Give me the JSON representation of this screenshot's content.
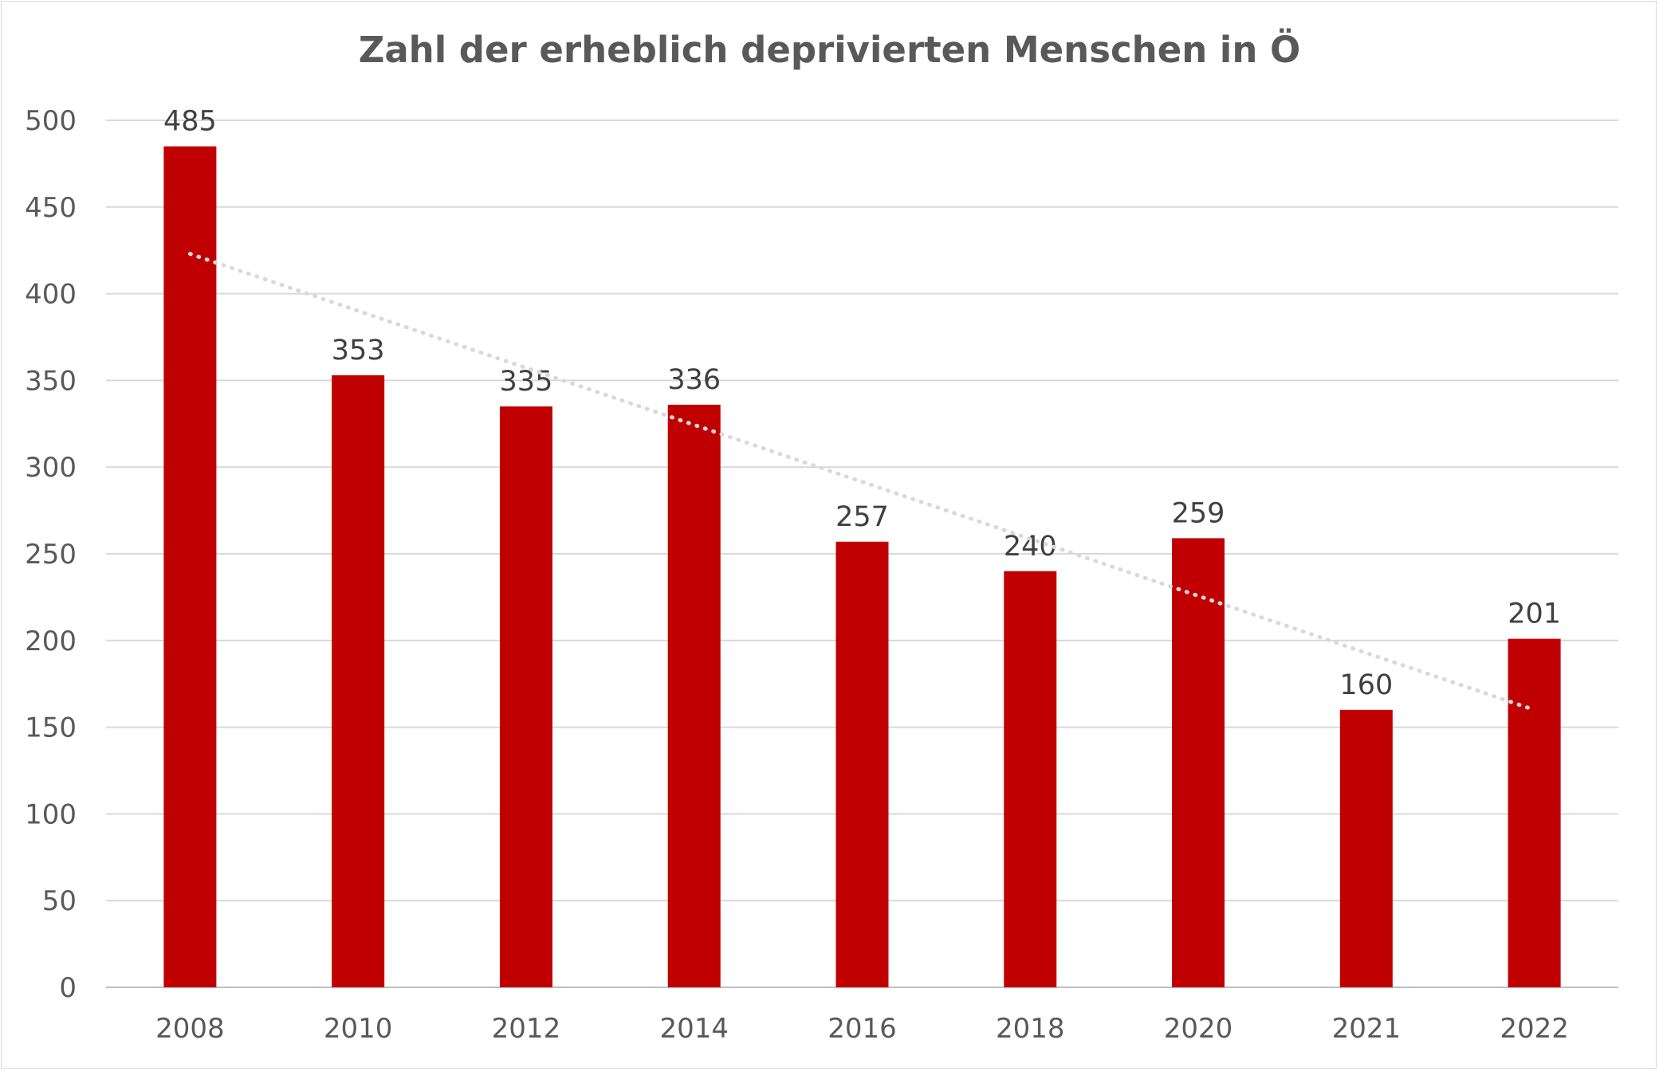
{
  "chart_data": {
    "type": "bar",
    "title": "Zahl der erheblich deprivierten Menschen in Ö",
    "xlabel": "",
    "ylabel": "",
    "categories": [
      "2008",
      "2010",
      "2012",
      "2014",
      "2016",
      "2018",
      "2020",
      "2021",
      "2022"
    ],
    "values": [
      485,
      353,
      335,
      336,
      257,
      240,
      259,
      160,
      201
    ],
    "ylim": [
      0,
      500
    ],
    "yticks": [
      0,
      50,
      100,
      150,
      200,
      250,
      300,
      350,
      400,
      450,
      500
    ],
    "grid": true,
    "bar_color": "#c00000",
    "data_labels": true,
    "trendline": {
      "type": "linear",
      "style": "dotted",
      "color": "#d9d9d9",
      "start": 423,
      "end": 160
    }
  }
}
